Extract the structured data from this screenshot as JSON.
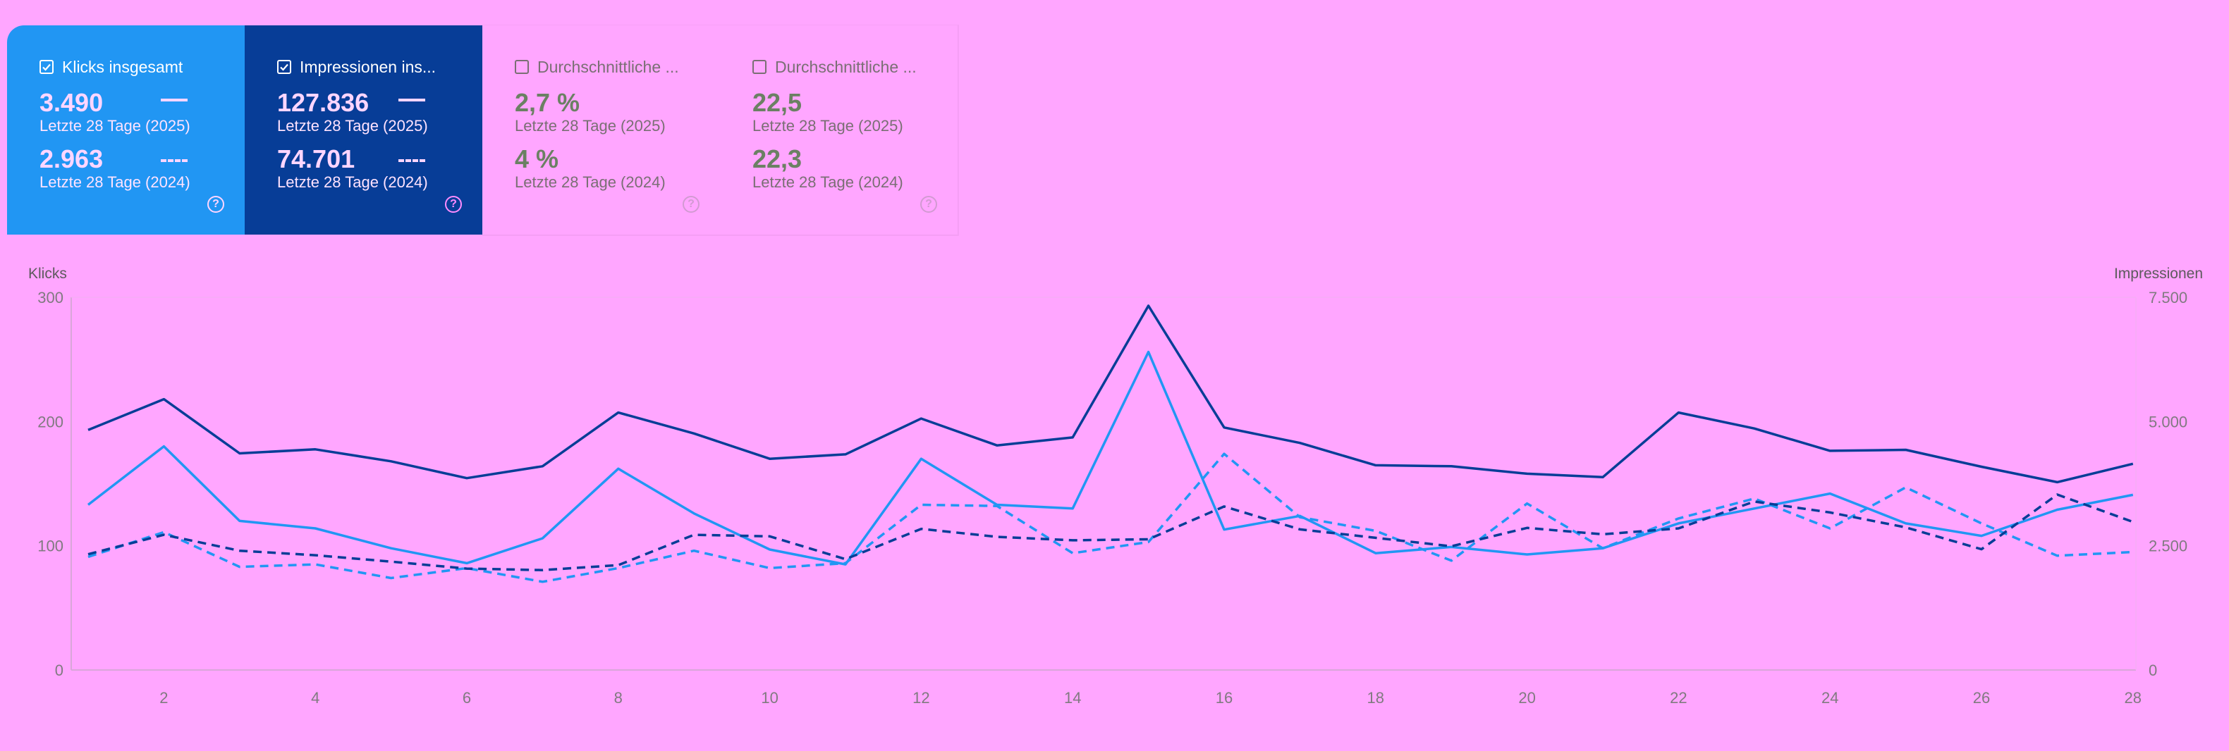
{
  "metrics": [
    {
      "name": "Klicks insgesamt",
      "checked": true,
      "value_current": "3.490",
      "period_current": "Letzte 28 Tage (2025)",
      "value_previous": "2.963",
      "period_previous": "Letzte 28 Tage (2024)",
      "color": "#2196f3"
    },
    {
      "name": "Impressionen ins...",
      "checked": true,
      "value_current": "127.836",
      "period_current": "Letzte 28 Tage (2025)",
      "value_previous": "74.701",
      "period_previous": "Letzte 28 Tage (2024)",
      "color": "#073d97"
    },
    {
      "name": "Durchschnittliche ...",
      "checked": false,
      "value_current": "2,7 %",
      "period_current": "Letzte 28 Tage (2025)",
      "value_previous": "4 %",
      "period_previous": "Letzte 28 Tage (2024)"
    },
    {
      "name": "Durchschnittliche ...",
      "checked": false,
      "value_current": "22,5",
      "period_current": "Letzte 28 Tage (2025)",
      "value_previous": "22,3",
      "period_previous": "Letzte 28 Tage (2024)"
    }
  ],
  "chart_data": {
    "type": "line",
    "ylabel_left": "Klicks",
    "ylabel_right": "Impressionen",
    "ylim_left": [
      0,
      300
    ],
    "ylim_right": [
      0,
      7500
    ],
    "yticks_left": [
      "0",
      "100",
      "200",
      "300"
    ],
    "yticks_right": [
      "0",
      "2.500",
      "5.000",
      "7.500"
    ],
    "x": [
      1,
      2,
      3,
      4,
      5,
      6,
      7,
      8,
      9,
      10,
      11,
      12,
      13,
      14,
      15,
      16,
      17,
      18,
      19,
      20,
      21,
      22,
      23,
      24,
      25,
      26,
      27,
      28
    ],
    "xticks": [
      2,
      4,
      6,
      8,
      10,
      12,
      14,
      16,
      18,
      20,
      22,
      24,
      26,
      28
    ],
    "grid": false,
    "series": [
      {
        "metric": "Klicks insgesamt",
        "period": "Letzte 28 Tage (2025)",
        "axis": "left",
        "style": "solid",
        "color": "#2196f3",
        "values": [
          133,
          180,
          120,
          114,
          98,
          86,
          106,
          162,
          126,
          97,
          85,
          170,
          133,
          130,
          256,
          113,
          124,
          94,
          99,
          93,
          98,
          118,
          130,
          142,
          118,
          108,
          129,
          141
        ]
      },
      {
        "metric": "Klicks insgesamt",
        "period": "Letzte 28 Tage (2024)",
        "axis": "left",
        "style": "dashed",
        "color": "#2196f3",
        "values": [
          91,
          111,
          83,
          85,
          74,
          82,
          71,
          82,
          96,
          82,
          86,
          133,
          132,
          94,
          103,
          174,
          123,
          112,
          88,
          134,
          98,
          122,
          138,
          114,
          147,
          118,
          92,
          95
        ]
      },
      {
        "metric": "Impressionen ins...",
        "period": "Letzte 28 Tage (2025)",
        "axis": "right",
        "style": "solid",
        "color": "#073d97",
        "values": [
          4830,
          5450,
          4360,
          4440,
          4200,
          3860,
          4100,
          5180,
          4760,
          4250,
          4340,
          5060,
          4520,
          4680,
          7330,
          4880,
          4570,
          4120,
          4100,
          3950,
          3880,
          5180,
          4860,
          4410,
          4430,
          4090,
          3780,
          4150
        ]
      },
      {
        "metric": "Impressionen ins...",
        "period": "Letzte 28 Tage (2024)",
        "axis": "right",
        "style": "dashed",
        "color": "#073d97",
        "values": [
          2330,
          2720,
          2400,
          2310,
          2180,
          2040,
          2010,
          2110,
          2720,
          2690,
          2230,
          2840,
          2680,
          2610,
          2630,
          3290,
          2830,
          2660,
          2490,
          2860,
          2730,
          2850,
          3390,
          3170,
          2870,
          2430,
          3530,
          2980
        ]
      }
    ]
  }
}
